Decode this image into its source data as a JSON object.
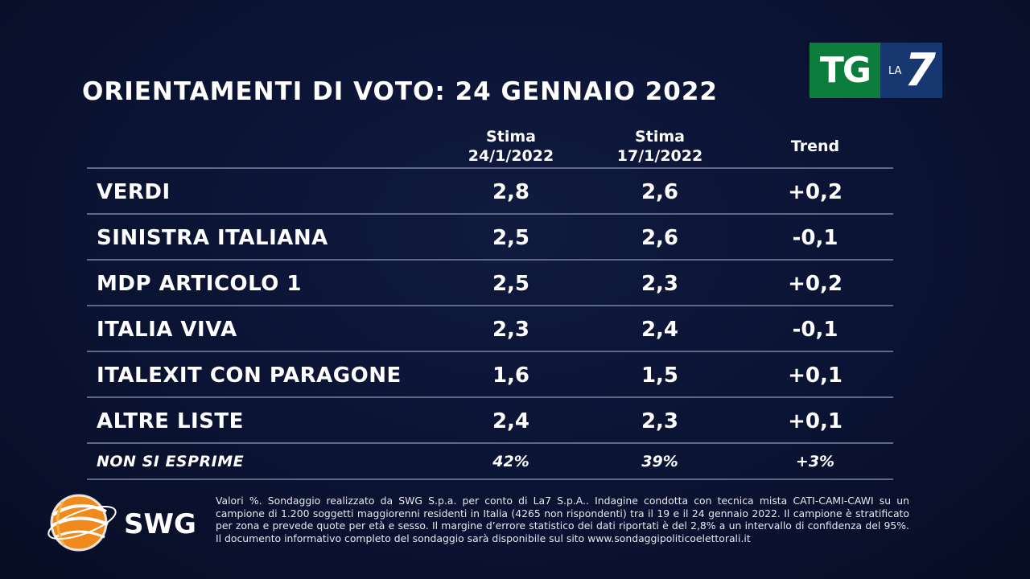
{
  "title": "ORIENTAMENTI DI VOTO: 24 GENNAIO 2022",
  "logo": {
    "tg": "TG",
    "la": "LA",
    "seven": "7"
  },
  "columns": [
    {
      "line1": "Stima",
      "line2": "24/1/2022"
    },
    {
      "line1": "Stima",
      "line2": "17/1/2022"
    },
    {
      "line1": "Trend",
      "line2": ""
    }
  ],
  "rows": [
    {
      "party": "VERDI",
      "current": "2,8",
      "previous": "2,6",
      "trend": "+0,2"
    },
    {
      "party": "SINISTRA ITALIANA",
      "current": "2,5",
      "previous": "2,6",
      "trend": "-0,1"
    },
    {
      "party": "MDP ARTICOLO 1",
      "current": "2,5",
      "previous": "2,3",
      "trend": "+0,2"
    },
    {
      "party": "ITALIA VIVA",
      "current": "2,3",
      "previous": "2,4",
      "trend": "-0,1"
    },
    {
      "party": "ITALEXIT CON PARAGONE",
      "current": "1,6",
      "previous": "1,5",
      "trend": "+0,1"
    },
    {
      "party": "ALTRE LISTE",
      "current": "2,4",
      "previous": "2,3",
      "trend": "+0,1"
    }
  ],
  "non_si_esprime": {
    "party": "NON SI ESPRIME",
    "current": "42%",
    "previous": "39%",
    "trend": "+3%"
  },
  "swg": {
    "name": "SWG",
    "colors": [
      "#f08a1c",
      "#f6b04a"
    ]
  },
  "disclaimer": "Valori %. Sondaggio realizzato da SWG S.p.a. per conto di La7 S.p.A.. Indagine condotta con tecnica mista CATI-CAMI-CAWI su un campione di 1.200 soggetti maggiorenni residenti in Italia (4265 non rispondenti) tra il 19 e il 24 gennaio 2022. Il campione è stratificato per zona e prevede quote per età e sesso. Il margine d’errore statistico dei dati riportati è del 2,8% a un intervallo di confidenza del 95%. Il documento informativo completo del sondaggio sarà disponibile sul sito www.sondaggipoliticoelettorali.it",
  "colors": {
    "background": "#0b1333",
    "tg_green": "#0c7d3c",
    "la7_blue": "#16376f",
    "rule": "#5f6887"
  }
}
